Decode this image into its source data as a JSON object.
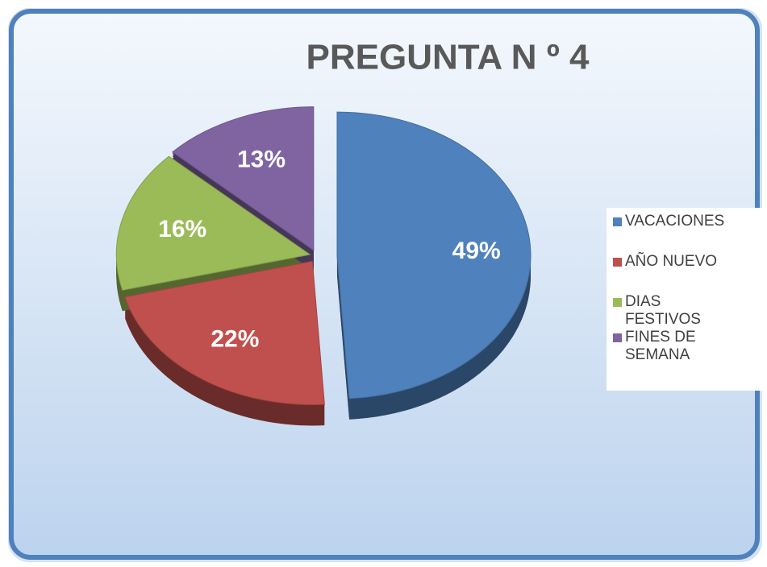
{
  "chart_data": {
    "type": "pie",
    "title": "PREGUNTA N º 4",
    "categories": [
      "VACACIONES",
      "AÑO NUEVO",
      "DIAS FESTIVOS",
      "FINES DE SEMANA"
    ],
    "values": [
      49,
      22,
      16,
      13
    ],
    "value_labels": [
      "49%",
      "22%",
      "16%",
      "13%"
    ],
    "colors": [
      "#4f81bd",
      "#c0504d",
      "#9bbb59",
      "#8064a2"
    ],
    "legend": "right"
  }
}
